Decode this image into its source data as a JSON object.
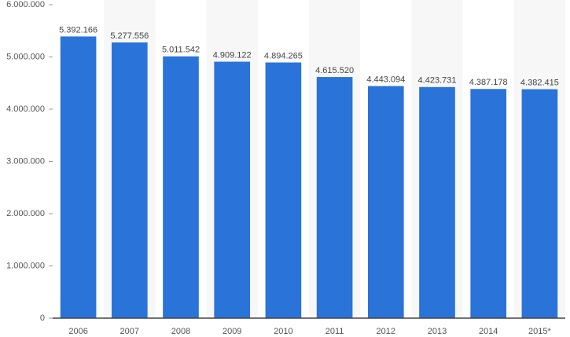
{
  "chart_data": {
    "type": "bar",
    "categories": [
      "2006",
      "2007",
      "2008",
      "2009",
      "2010",
      "2011",
      "2012",
      "2013",
      "2014",
      "2015*"
    ],
    "values": [
      5392166,
      5277556,
      5011542,
      4909122,
      4894265,
      4615520,
      4443094,
      4423731,
      4387178,
      4382415
    ],
    "value_labels": [
      "5.392.166",
      "5.277.556",
      "5.011.542",
      "4.909.122",
      "4.894.265",
      "4.615.520",
      "4.443.094",
      "4.423.731",
      "4.387.178",
      "4.382.415"
    ],
    "color": "#2a73d9",
    "ylim": [
      0,
      6000000
    ],
    "yticks": [
      0,
      {
        "value": 1000000,
        "label": "1.000.000"
      },
      {
        "value": 2000000,
        "label": "2.000.000"
      },
      {
        "value": 3000000,
        "label": "3.000.000"
      },
      {
        "value": 4000000,
        "label": "4.000.000"
      },
      {
        "value": 5000000,
        "label": "5.000.000"
      },
      {
        "value": 6000000,
        "label": "6.000.000"
      }
    ],
    "grid": false
  }
}
